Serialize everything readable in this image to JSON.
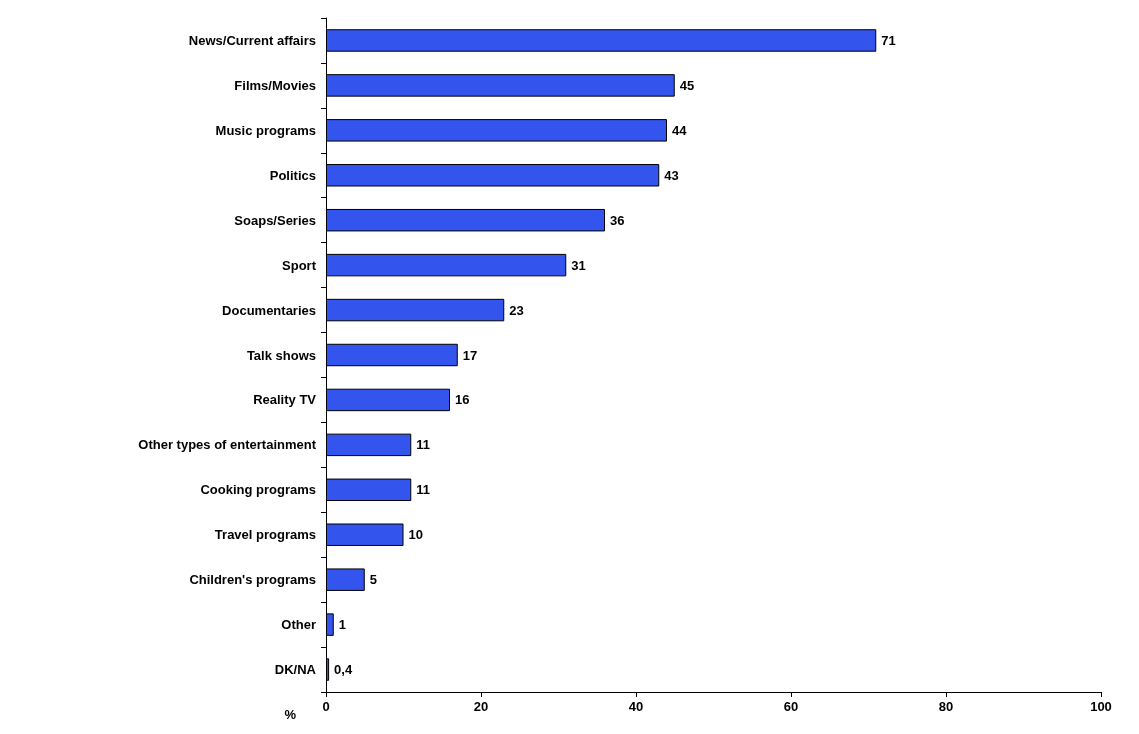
{
  "chart_data": {
    "type": "bar",
    "orientation": "horizontal",
    "xlabel": "%",
    "categories": [
      "News/Current affairs",
      "Films/Movies",
      "Music programs",
      "Politics",
      "Soaps/Series",
      "Sport",
      "Documentaries",
      "Talk shows",
      "Reality TV",
      "Other types of entertainment",
      "Cooking programs",
      "Travel programs",
      "Children's programs",
      "Other",
      "DK/NA"
    ],
    "values": [
      71,
      45,
      44,
      43,
      36,
      31,
      23,
      17,
      16,
      11,
      11,
      10,
      5,
      1,
      0.4
    ],
    "value_labels": [
      "71",
      "45",
      "44",
      "43",
      "36",
      "31",
      "23",
      "17",
      "16",
      "11",
      "11",
      "10",
      "5",
      "1",
      "0,4"
    ],
    "color": "#3355ee",
    "xlim": [
      0,
      100
    ],
    "xticks": [
      0,
      20,
      40,
      60,
      80,
      100
    ],
    "grid": false
  }
}
